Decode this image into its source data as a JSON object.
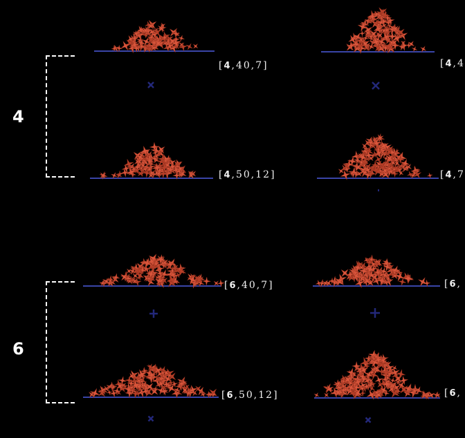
{
  "groups": [
    {
      "label": "4",
      "panels": [
        {
          "tag": {
            "n": "4",
            "rest": "40,7"
          },
          "clipped": false
        },
        {
          "tag": {
            "n": "4",
            "rest": "50,12"
          },
          "clipped": false
        },
        {
          "tag": {
            "n": "4",
            "rest": "4"
          },
          "clipped": true
        },
        {
          "tag": {
            "n": "4",
            "rest": "7"
          },
          "clipped": true
        }
      ]
    },
    {
      "label": "6",
      "panels": [
        {
          "tag": {
            "n": "6",
            "rest": "40,7"
          },
          "clipped": false
        },
        {
          "tag": {
            "n": "6",
            "rest": "50,12"
          },
          "clipped": false
        },
        {
          "tag": {
            "n": "6",
            "rest": ""
          },
          "clipped": true
        },
        {
          "tag": {
            "n": "6",
            "rest": ""
          },
          "clipped": true
        }
      ]
    }
  ],
  "colors": {
    "background": "#000000",
    "star": "#d9553b",
    "star_dark": "#b83f28",
    "base_line": "#3a45a8",
    "marker": "#23287a",
    "text": "#ffffff"
  }
}
